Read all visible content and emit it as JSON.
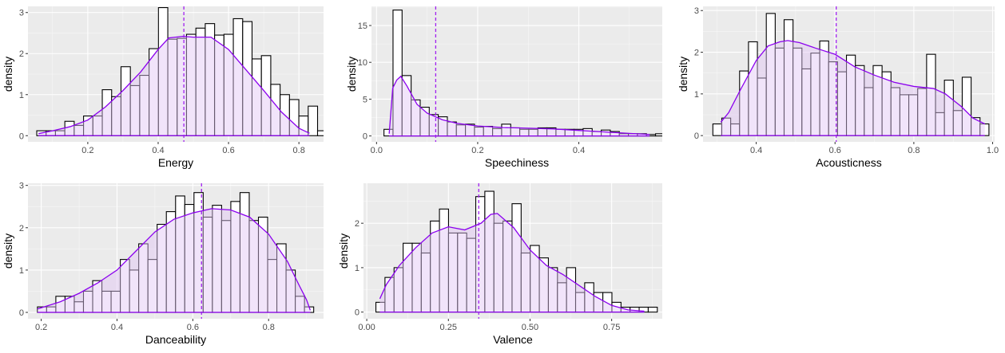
{
  "colors": {
    "panel": "#EBEBEB",
    "grid_major": "#FFFFFF",
    "bar_fill": "#FFFFFF",
    "bar_stroke": "#000000",
    "density_line": "#8B00EE",
    "density_fill": "#E0C4F5",
    "mean_line": "#A020F0",
    "tick_text": "#4D4D4D",
    "axis_title": "#000000"
  },
  "chart_data": [
    {
      "type": "histogram",
      "xlabel": "Energy",
      "ylabel": "density",
      "xlim": [
        0.03,
        0.87
      ],
      "ylim": [
        -0.15,
        3.15
      ],
      "xticks": [
        0.2,
        0.4,
        0.6,
        0.8
      ],
      "xtick_labels": [
        "0.2",
        "0.4",
        "0.6",
        "0.8"
      ],
      "yticks": [
        0,
        1,
        2,
        3
      ],
      "ytick_labels": [
        "0",
        "1",
        "2",
        "3"
      ],
      "bins": {
        "start": 0.055,
        "width": 0.0266,
        "densities": [
          0.12,
          0.12,
          0.12,
          0.35,
          0.25,
          0.48,
          0.48,
          1.12,
          0.95,
          1.68,
          1.22,
          1.47,
          2.12,
          3.12,
          2.35,
          2.37,
          2.47,
          2.62,
          2.73,
          2.45,
          2.47,
          2.85,
          2.78,
          1.87,
          1.95,
          1.25,
          1.0,
          0.88,
          0.48,
          0.72,
          0.12,
          0.12
        ]
      },
      "density_curve": [
        [
          0.06,
          0.05
        ],
        [
          0.1,
          0.12
        ],
        [
          0.15,
          0.22
        ],
        [
          0.2,
          0.38
        ],
        [
          0.25,
          0.7
        ],
        [
          0.3,
          1.1
        ],
        [
          0.35,
          1.55
        ],
        [
          0.4,
          2.1
        ],
        [
          0.43,
          2.38
        ],
        [
          0.47,
          2.42
        ],
        [
          0.5,
          2.4
        ],
        [
          0.55,
          2.4
        ],
        [
          0.6,
          2.1
        ],
        [
          0.65,
          1.6
        ],
        [
          0.7,
          1.1
        ],
        [
          0.75,
          0.58
        ],
        [
          0.8,
          0.18
        ],
        [
          0.83,
          0.06
        ]
      ],
      "mean": 0.473
    },
    {
      "type": "histogram",
      "xlabel": "Speechiness",
      "ylabel": "density",
      "xlim": [
        -0.01,
        0.565
      ],
      "ylim": [
        -0.8,
        17.6
      ],
      "xticks": [
        0.0,
        0.2,
        0.4
      ],
      "xtick_labels": [
        "0.0",
        "0.2",
        "0.4"
      ],
      "yticks": [
        0,
        5,
        10,
        15
      ],
      "ytick_labels": [
        "0",
        "5",
        "10",
        "15"
      ],
      "bins": {
        "start": 0.0147,
        "width": 0.0179,
        "densities": [
          0.9,
          17.1,
          8.2,
          4.9,
          3.9,
          2.9,
          2.6,
          1.9,
          1.5,
          1.6,
          1.2,
          1.3,
          1.0,
          1.6,
          1.1,
          0.9,
          0.9,
          1.1,
          1.1,
          0.9,
          0.9,
          0.9,
          1.0,
          0.6,
          0.8,
          0.6,
          0.3,
          0.3,
          0.3,
          0.2,
          0.3,
          0.3
        ]
      },
      "density_curve": [
        [
          0.025,
          0.3
        ],
        [
          0.032,
          6.5
        ],
        [
          0.04,
          7.6
        ],
        [
          0.048,
          8.1
        ],
        [
          0.06,
          6.8
        ],
        [
          0.08,
          4.3
        ],
        [
          0.1,
          3.1
        ],
        [
          0.13,
          2.2
        ],
        [
          0.16,
          1.7
        ],
        [
          0.2,
          1.35
        ],
        [
          0.25,
          1.15
        ],
        [
          0.3,
          1.05
        ],
        [
          0.35,
          0.95
        ],
        [
          0.4,
          0.75
        ],
        [
          0.45,
          0.55
        ],
        [
          0.5,
          0.35
        ],
        [
          0.54,
          0.2
        ]
      ],
      "mean": 0.117
    },
    {
      "type": "histogram",
      "xlabel": "Acousticness",
      "ylabel": "density",
      "xlim": [
        0.265,
        1.005
      ],
      "ylim": [
        -0.15,
        3.1
      ],
      "xticks": [
        0.4,
        0.6,
        0.8,
        1.0
      ],
      "xtick_labels": [
        "0.4",
        "0.6",
        "0.8",
        "1.0"
      ],
      "yticks": [
        0,
        1,
        2,
        3
      ],
      "ytick_labels": [
        "0",
        "1",
        "2",
        "3"
      ],
      "bins": {
        "start": 0.29,
        "width": 0.0226,
        "densities": [
          0.28,
          0.42,
          0.28,
          1.55,
          2.25,
          1.38,
          2.93,
          2.1,
          2.78,
          2.1,
          1.6,
          1.98,
          2.27,
          1.77,
          1.53,
          1.93,
          1.68,
          1.15,
          1.68,
          1.53,
          1.15,
          0.98,
          0.98,
          1.13,
          1.95,
          0.55,
          1.33,
          0.6,
          1.4,
          0.43,
          0.28
        ]
      },
      "density_curve": [
        [
          0.31,
          0.32
        ],
        [
          0.33,
          0.55
        ],
        [
          0.36,
          1.1
        ],
        [
          0.4,
          1.8
        ],
        [
          0.43,
          2.15
        ],
        [
          0.46,
          2.25
        ],
        [
          0.48,
          2.28
        ],
        [
          0.51,
          2.23
        ],
        [
          0.55,
          2.1
        ],
        [
          0.6,
          1.95
        ],
        [
          0.65,
          1.65
        ],
        [
          0.7,
          1.45
        ],
        [
          0.75,
          1.28
        ],
        [
          0.8,
          1.18
        ],
        [
          0.85,
          1.13
        ],
        [
          0.88,
          1.0
        ],
        [
          0.92,
          0.7
        ],
        [
          0.95,
          0.42
        ],
        [
          0.98,
          0.28
        ]
      ],
      "mean": 0.603
    },
    {
      "type": "histogram",
      "xlabel": "Danceability",
      "ylabel": "density",
      "xlim": [
        0.165,
        0.945
      ],
      "ylim": [
        -0.15,
        3.05
      ],
      "xticks": [
        0.2,
        0.4,
        0.6,
        0.8
      ],
      "xtick_labels": [
        "0.2",
        "0.4",
        "0.6",
        "0.8"
      ],
      "yticks": [
        0,
        1,
        2,
        3
      ],
      "ytick_labels": [
        "0",
        "1",
        "2",
        "3"
      ],
      "bins": {
        "start": 0.19,
        "width": 0.0243,
        "densities": [
          0.13,
          0.13,
          0.38,
          0.38,
          0.25,
          0.5,
          0.75,
          0.5,
          0.5,
          1.25,
          1.0,
          1.62,
          1.25,
          2.08,
          2.38,
          2.75,
          2.55,
          2.83,
          2.25,
          2.53,
          2.17,
          2.62,
          2.83,
          2.17,
          2.25,
          1.25,
          1.62,
          1.0,
          0.38,
          0.13
        ]
      },
      "density_curve": [
        [
          0.19,
          0.08
        ],
        [
          0.25,
          0.25
        ],
        [
          0.3,
          0.45
        ],
        [
          0.35,
          0.7
        ],
        [
          0.4,
          1.0
        ],
        [
          0.45,
          1.45
        ],
        [
          0.5,
          1.9
        ],
        [
          0.55,
          2.2
        ],
        [
          0.6,
          2.35
        ],
        [
          0.65,
          2.45
        ],
        [
          0.7,
          2.42
        ],
        [
          0.75,
          2.25
        ],
        [
          0.8,
          1.85
        ],
        [
          0.85,
          1.2
        ],
        [
          0.88,
          0.65
        ],
        [
          0.9,
          0.3
        ],
        [
          0.91,
          0.05
        ]
      ],
      "mean": 0.623
    },
    {
      "type": "histogram",
      "xlabel": "Valence",
      "ylabel": "density",
      "xlim": [
        -0.01,
        0.905
      ],
      "ylim": [
        -0.15,
        2.9
      ],
      "xticks": [
        0.0,
        0.25,
        0.5,
        0.75
      ],
      "xtick_labels": [
        "0.00",
        "0.25",
        "0.50",
        "0.75"
      ],
      "yticks": [
        0,
        1,
        2
      ],
      "ytick_labels": [
        "0",
        "1",
        "2"
      ],
      "bins": {
        "start": 0.028,
        "width": 0.0278,
        "densities": [
          0.22,
          0.78,
          1.0,
          1.55,
          1.55,
          1.33,
          2.05,
          2.32,
          1.78,
          1.78,
          1.66,
          2.6,
          2.72,
          2.0,
          2.05,
          2.44,
          1.33,
          1.5,
          1.22,
          1.0,
          0.66,
          1.0,
          0.44,
          0.66,
          0.44,
          0.44,
          0.22,
          0.11,
          0.11,
          0.11,
          0.11
        ]
      },
      "density_curve": [
        [
          0.04,
          0.3
        ],
        [
          0.06,
          0.62
        ],
        [
          0.1,
          1.05
        ],
        [
          0.15,
          1.45
        ],
        [
          0.2,
          1.78
        ],
        [
          0.25,
          1.92
        ],
        [
          0.3,
          1.85
        ],
        [
          0.35,
          2.0
        ],
        [
          0.38,
          2.2
        ],
        [
          0.4,
          2.22
        ],
        [
          0.45,
          1.9
        ],
        [
          0.5,
          1.4
        ],
        [
          0.55,
          1.05
        ],
        [
          0.6,
          0.85
        ],
        [
          0.65,
          0.6
        ],
        [
          0.7,
          0.35
        ],
        [
          0.75,
          0.15
        ],
        [
          0.8,
          0.05
        ],
        [
          0.85,
          0.02
        ]
      ],
      "mean": 0.343
    }
  ]
}
